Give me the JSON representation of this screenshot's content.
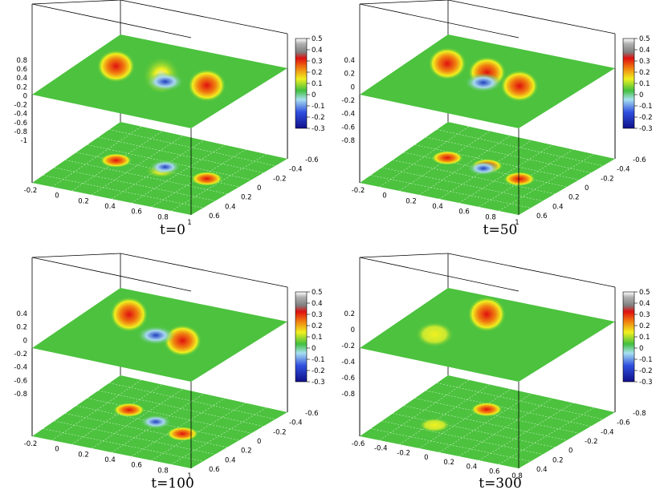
{
  "colors": {
    "background_field": "#4cc23e",
    "colormap": [
      "#10108a",
      "#3050e0",
      "#a8d8f0",
      "#40c040",
      "#f0f020",
      "#f08010",
      "#e01010",
      "#a0a0a0",
      "#ffffff"
    ]
  },
  "chart_data": [
    {
      "type": "heatmap",
      "caption": "t=0",
      "title": "",
      "xlabel": "",
      "ylabel": "",
      "zlabel": "",
      "z_ticks": [
        "0.8",
        "0.6",
        "0.4",
        "0.2",
        "0",
        "-0.2",
        "-0.4",
        "-0.6",
        "-0.8",
        "-1"
      ],
      "x_ticks": [
        "-0.2",
        "0",
        "0.2",
        "0.4",
        "0.6",
        "0.8",
        "1"
      ],
      "y_ticks": [
        "0.6",
        "0.4",
        "0.2",
        "0",
        "-0.2",
        "-0.4",
        "-0.6"
      ],
      "colorbar_ticks": [
        "0.5",
        "0.4",
        "0.3",
        "0.2",
        "0.1",
        "0",
        "-0.1",
        "-0.2",
        "-0.3"
      ],
      "colorbar_range": [
        -0.3,
        0.5
      ],
      "peaks": [
        {
          "x": 0.05,
          "y": 0.0,
          "z": 0.32
        },
        {
          "x": 0.45,
          "y": 0.0,
          "z": 0.5
        },
        {
          "x": 0.85,
          "y": 0.0,
          "z": 0.32
        },
        {
          "x": 0.45,
          "y": 0.05,
          "z": -0.25
        }
      ]
    },
    {
      "type": "heatmap",
      "caption": "t=50",
      "title": "",
      "xlabel": "",
      "ylabel": "",
      "zlabel": "",
      "z_ticks": [
        "0.4",
        "0.2",
        "0",
        "-0.2",
        "-0.4",
        "-0.6",
        "-0.8"
      ],
      "x_ticks": [
        "-0.2",
        "0",
        "0.2",
        "0.4",
        "0.6",
        "0.8",
        "1"
      ],
      "y_ticks": [
        "0.6",
        "0.4",
        "0.2",
        "0",
        "-0.2",
        "-0.4",
        "-0.6"
      ],
      "colorbar_ticks": [
        "0.5",
        "0.4",
        "0.3",
        "0.2",
        "0.1",
        "0",
        "-0.1",
        "-0.2",
        "-0.3"
      ],
      "colorbar_range": [
        -0.3,
        0.5
      ],
      "peaks": [
        {
          "x": 0.05,
          "y": 0.05,
          "z": 0.32
        },
        {
          "x": 0.4,
          "y": 0.05,
          "z": 0.3
        },
        {
          "x": 0.75,
          "y": -0.05,
          "z": 0.3
        },
        {
          "x": 0.4,
          "y": 0.0,
          "z": -0.2
        }
      ]
    },
    {
      "type": "heatmap",
      "caption": "t=100",
      "title": "",
      "xlabel": "",
      "ylabel": "",
      "zlabel": "",
      "z_ticks": [
        "0.4",
        "0.2",
        "0",
        "-0.2",
        "-0.4",
        "-0.6",
        "-0.8"
      ],
      "x_ticks": [
        "-0.2",
        "0",
        "0.2",
        "0.4",
        "0.6",
        "0.8",
        "1"
      ],
      "y_ticks": [
        "0.6",
        "0.4",
        "0.2",
        "0",
        "-0.2",
        "-0.4",
        "-0.6"
      ],
      "colorbar_ticks": [
        "0.5",
        "0.4",
        "0.3",
        "0.2",
        "0.1",
        "0",
        "-0.1",
        "-0.2",
        "-0.3"
      ],
      "colorbar_range": [
        -0.3,
        0.5
      ],
      "peaks": [
        {
          "x": 0.1,
          "y": 0.1,
          "z": 0.38
        },
        {
          "x": 0.7,
          "y": -0.1,
          "z": 0.3
        },
        {
          "x": 0.4,
          "y": 0.0,
          "z": -0.08
        }
      ]
    },
    {
      "type": "heatmap",
      "caption": "t=300",
      "title": "",
      "xlabel": "",
      "ylabel": "",
      "zlabel": "",
      "z_ticks": [
        "0.2",
        "0",
        "-0.2",
        "-0.4",
        "-0.6",
        "-0.8"
      ],
      "x_ticks": [
        "-0.6",
        "-0.4",
        "-0.2",
        "0",
        "0.2",
        "0.4",
        "0.6",
        "0.8"
      ],
      "y_ticks": [
        "0.4",
        "0.2",
        "0",
        "-0.2",
        "-0.4",
        "-0.6",
        "-0.8"
      ],
      "colorbar_ticks": [
        "0.5",
        "0.4",
        "0.3",
        "0.2",
        "0.1",
        "0",
        "-0.1",
        "-0.2",
        "-0.3"
      ],
      "colorbar_range": [
        -0.3,
        0.5
      ],
      "peaks": [
        {
          "x": 0.3,
          "y": 0.2,
          "z": 0.38
        },
        {
          "x": 0.1,
          "y": -0.2,
          "z": 0.15
        }
      ]
    }
  ]
}
